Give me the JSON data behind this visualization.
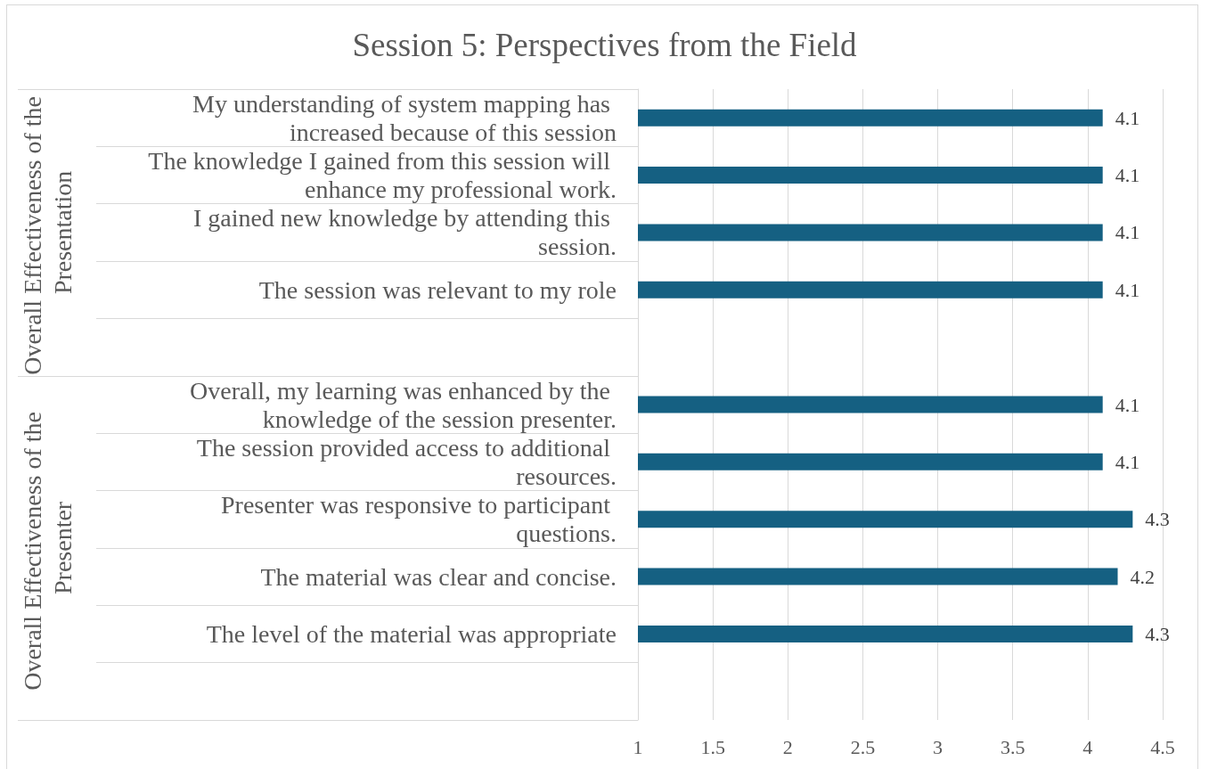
{
  "chart_data": {
    "type": "bar",
    "orientation": "horizontal",
    "title": "Session 5: Perspectives from the Field",
    "categories": [
      "My understanding of system mapping has increased because of this session",
      "The knowledge I gained from this session will enhance my professional work.",
      "I gained new knowledge by attending this session.",
      "The session was relevant to my role",
      null,
      "Overall, my learning was enhanced by the knowledge of the session presenter.",
      "The session provided access to additional resources.",
      "Presenter was responsive to participant questions.",
      "The material was clear and concise.",
      "The level of the material was appropriate",
      null
    ],
    "values": [
      4.1,
      4.1,
      4.1,
      4.1,
      null,
      4.1,
      4.1,
      4.3,
      4.2,
      4.3,
      null
    ],
    "color": "#156082",
    "xlim": [
      1,
      4.5
    ],
    "xticks": [
      1,
      1.5,
      2,
      2.5,
      3,
      3.5,
      4,
      4.5
    ],
    "grid": "x",
    "data_labels": true,
    "annotations": [
      "Overall Effectiveness of the Presentation",
      "Overall Effectiveness of the Presenter"
    ]
  }
}
